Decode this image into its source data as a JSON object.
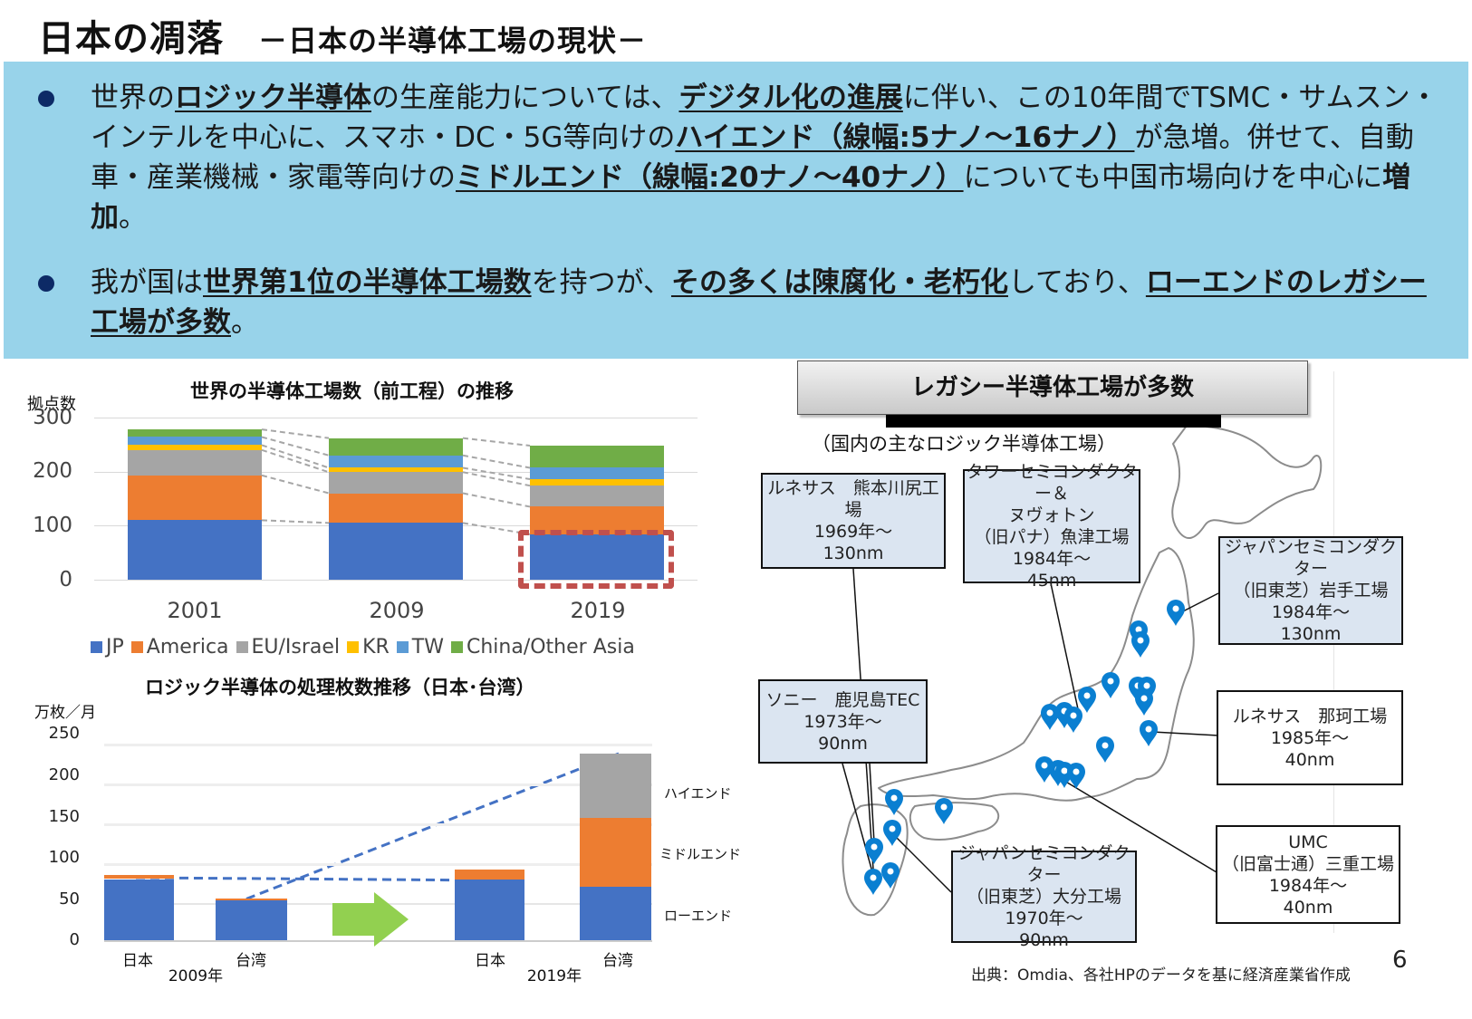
{
  "header": {
    "title": "日本の凋落",
    "subtitle": "－日本の半導体工場の現状－"
  },
  "bullets": [
    {
      "segments": [
        {
          "text": "世界の",
          "bold": false
        },
        {
          "text": "ロジック半導体",
          "bold": true
        },
        {
          "text": "の生産能力については、",
          "bold": false
        },
        {
          "text": "デジタル化の進展",
          "bold": true
        },
        {
          "text": "に伴い、この10年間でTSMC・サムスン・インテルを中心に、スマホ・DC・5G等向けの",
          "bold": false
        },
        {
          "text": "ハイエンド（線幅:5ナノ～16ナノ）",
          "bold": true
        },
        {
          "text": "が急増。併せて、自動車・産業機械・家電等向けの",
          "bold": false
        },
        {
          "text": "ミドルエンド（線幅:20ナノ～40ナノ）",
          "bold": true
        },
        {
          "text": "についても中国市場向けを中心に",
          "bold": false
        },
        {
          "text": "増加",
          "bold": true,
          "underline": false
        },
        {
          "text": "。",
          "bold": false
        }
      ]
    },
    {
      "segments": [
        {
          "text": "我が国は",
          "bold": false
        },
        {
          "text": "世界第1位の半導体工場数",
          "bold": true
        },
        {
          "text": "を持つが、",
          "bold": false
        },
        {
          "text": "その多くは陳腐化・老朽化",
          "bold": true
        },
        {
          "text": "しており、",
          "bold": false
        },
        {
          "text": "ローエンドのレガシー工場が多数",
          "bold": true
        },
        {
          "text": "。",
          "bold": false
        }
      ]
    }
  ],
  "colors": {
    "banner_bg": "#98d3ea",
    "bullet_dot": "#0d2a66",
    "jp": "#4472c4",
    "america": "#ed7d31",
    "eu": "#a5a5a5",
    "kr": "#ffc000",
    "tw": "#5b9bd5",
    "china": "#70ad47",
    "highlight": "#c0504d",
    "pin": "#0a7fd1",
    "arrow": "#92d050"
  },
  "chart_data": [
    {
      "type": "bar",
      "stacked": true,
      "title": "世界の半導体工場数（前工程）の推移",
      "ylabel": "拠点数",
      "xlabel": "",
      "ylim": [
        0,
        300
      ],
      "yticks": [
        0,
        100,
        200,
        300
      ],
      "grid": true,
      "legend_position": "bottom",
      "categories": [
        "2001",
        "2009",
        "2019"
      ],
      "series": [
        {
          "name": "JP",
          "values": [
            110,
            105,
            84
          ]
        },
        {
          "name": "America",
          "values": [
            83,
            55,
            51
          ]
        },
        {
          "name": "EU/Israel",
          "values": [
            47,
            39,
            39
          ]
        },
        {
          "name": "KR",
          "values": [
            9,
            8,
            12
          ]
        },
        {
          "name": "TW",
          "values": [
            15,
            23,
            21
          ]
        },
        {
          "name": "China/Other Asia",
          "values": [
            14,
            32,
            41
          ]
        }
      ],
      "annotations": [
        "2019 JP bar highlighted with red dashed box",
        "dashed connector lines between bars"
      ]
    },
    {
      "type": "bar",
      "stacked": true,
      "title": "ロジック半導体の処理枚数推移（日本･台湾）",
      "ylabel": "万枚／月",
      "ylim": [
        0,
        250
      ],
      "yticks": [
        0,
        50,
        100,
        150,
        200,
        250
      ],
      "grid": true,
      "categories": [
        "日本 2009年",
        "台湾 2009年",
        "日本 2019年",
        "台湾 2019年"
      ],
      "groups": [
        {
          "year": "2009年",
          "categories": [
            "日本",
            "台湾"
          ]
        },
        {
          "year": "2019年",
          "categories": [
            "日本",
            "台湾"
          ]
        }
      ],
      "series": [
        {
          "name": "ローエンド",
          "values": [
            74,
            48,
            73,
            65
          ]
        },
        {
          "name": "ミドルエンド",
          "values": [
            5,
            2,
            13,
            83
          ]
        },
        {
          "name": "ハイエンド",
          "values": [
            0,
            0,
            0,
            78
          ]
        }
      ],
      "annotations": [
        "dashed trend line 日本 2009→2019",
        "dashed trend line 台湾 2009→2019",
        "green arrow between years"
      ]
    }
  ],
  "chart1": {
    "title": "世界の半導体工場数（前工程）の推移",
    "ylabel": "拠点数",
    "yticks": [
      "300",
      "200",
      "100",
      "0"
    ],
    "categories": [
      "2001",
      "2009",
      "2019"
    ],
    "legend": [
      "JP",
      "America",
      "EU/Israel",
      "KR",
      "TW",
      "China/Other Asia"
    ]
  },
  "chart2": {
    "title": "ロジック半導体の処理枚数推移（日本･台湾）",
    "ylabel": "万枚／月",
    "yticks": [
      "250",
      "200",
      "150",
      "100",
      "50",
      "0"
    ],
    "bar_labels": [
      "日本",
      "台湾",
      "日本",
      "台湾"
    ],
    "years": [
      "2009年",
      "2019年"
    ],
    "segment_labels": [
      "ハイエンド",
      "ミドルエンド",
      "ローエンド"
    ]
  },
  "map_panel": {
    "heading": "レガシー半導体工場が多数",
    "subheading": "（国内の主なロジック半導体工場）",
    "fabs": [
      {
        "name": "ルネサス　熊本川尻工場",
        "year": "1969年～",
        "node": "130nm"
      },
      {
        "name": "タワーセミコンダクター＆ヌヴォトン（旧パナ）魚津工場",
        "line1": "タワーセミコンダクター＆",
        "line2": "ヌヴォトン",
        "line3": "（旧パナ）魚津工場",
        "year": "1984年～",
        "node": "45nm"
      },
      {
        "name": "ジャパンセミコンダクター（旧東芝）岩手工場",
        "line1": "ジャパンセミコンダクター",
        "line2": "（旧東芝）岩手工場",
        "year": "1984年～",
        "node": "130nm"
      },
      {
        "name": "ソニー　鹿児島TEC",
        "year": "1973年～",
        "node": "90nm"
      },
      {
        "name": "ルネサス　那珂工場",
        "year": "1985年～",
        "node": "40nm"
      },
      {
        "name": "ジャパンセミコンダクター（旧東芝）大分工場",
        "line1": "ジャパンセミコンダクター",
        "line2": "（旧東芝）大分工場",
        "year": "1970年～",
        "node": "90nm"
      },
      {
        "name": "UMC（旧富士通）三重工場",
        "line1": "UMC",
        "line2": "（旧富士通）三重工場",
        "year": "1984年～",
        "node": "40nm"
      }
    ]
  },
  "footer": {
    "source": "出典：Omdia、各社HPのデータを基に経済産業省作成",
    "page_number": "6"
  }
}
